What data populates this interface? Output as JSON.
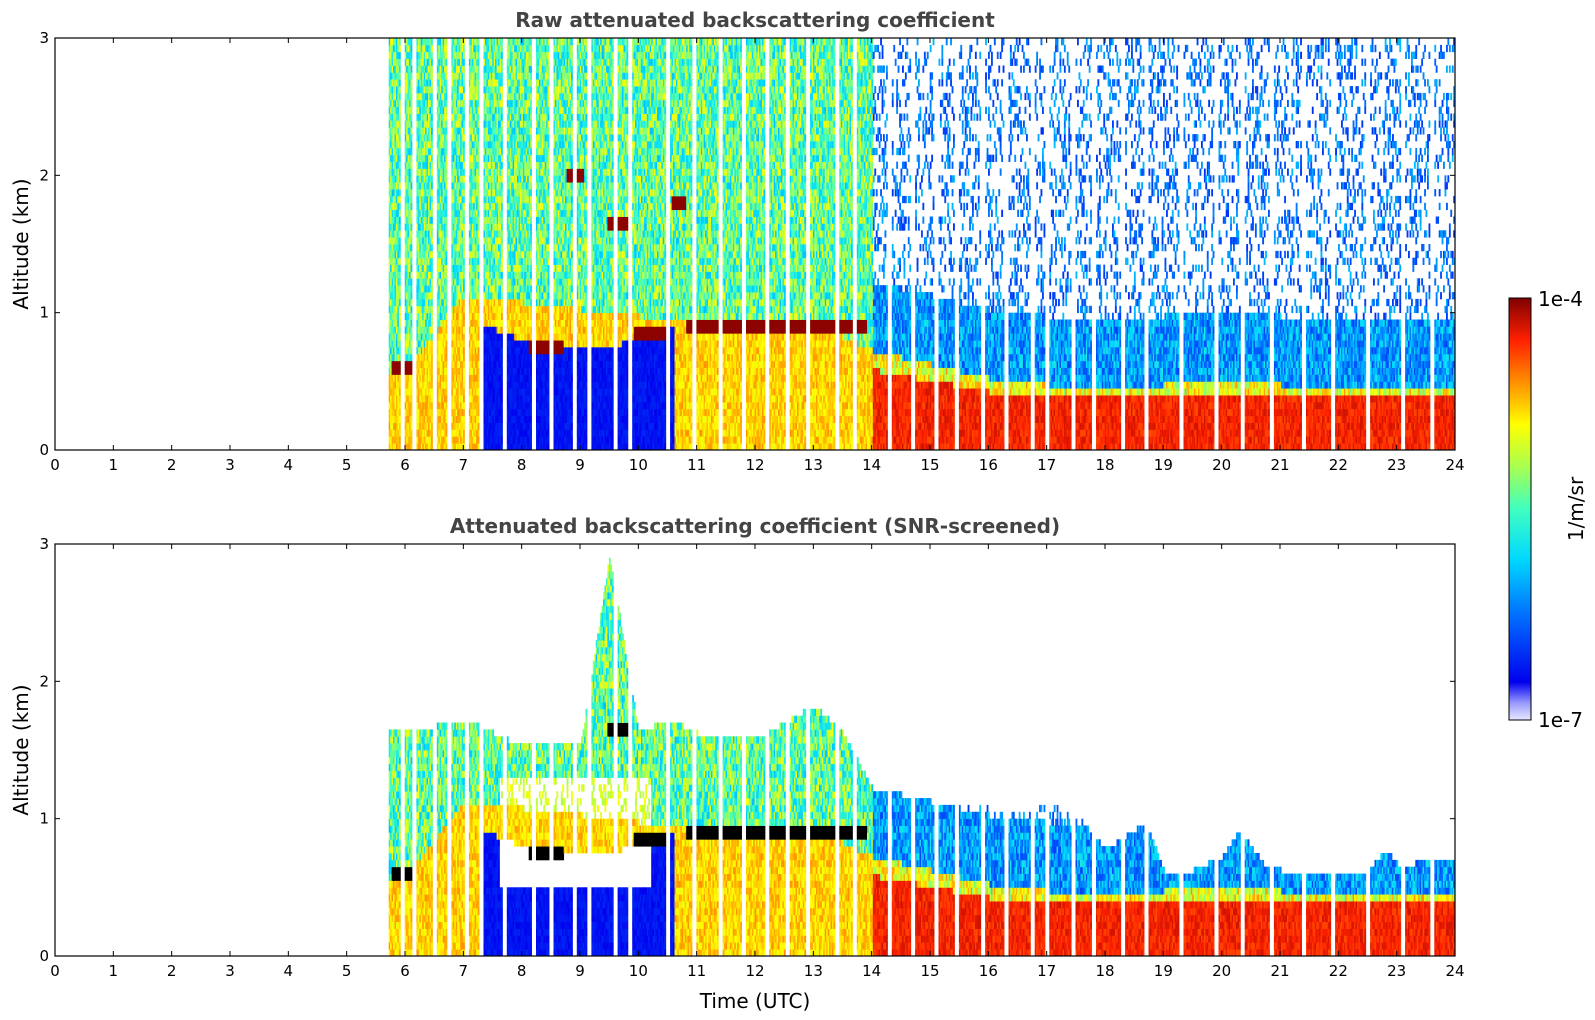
{
  "chart_data": [
    {
      "type": "heatmap",
      "title": "Raw attenuated backscattering coefficient",
      "xlabel": "",
      "ylabel": "Altitude (km)",
      "xlim": [
        0,
        24
      ],
      "ylim": [
        0,
        3
      ],
      "xticks": [
        "0",
        "1",
        "2",
        "3",
        "4",
        "5",
        "6",
        "7",
        "8",
        "9",
        "10",
        "11",
        "12",
        "13",
        "14",
        "15",
        "16",
        "17",
        "18",
        "19",
        "20",
        "21",
        "22",
        "23",
        "24"
      ],
      "yticks": [
        "0",
        "1",
        "2",
        "3"
      ],
      "data_start_time": 5.72,
      "profile_gaps_utc": [
        5.95,
        6.15,
        6.5,
        6.75,
        7.05,
        7.3,
        7.7,
        8.2,
        8.5,
        8.9,
        9.15,
        9.6,
        9.85,
        10.5,
        10.95,
        11.4,
        11.8,
        12.2,
        12.55,
        12.9,
        13.4,
        13.7,
        14.3,
        14.7,
        15.1,
        15.45,
        15.9,
        16.3,
        16.75,
        17.0,
        17.45,
        17.8,
        18.3,
        18.7,
        19.3,
        19.9,
        20.35,
        20.85,
        21.4,
        21.9,
        22.5,
        23.1,
        23.6
      ],
      "boundary_layer_top_km": [
        [
          6.0,
          0.55
        ],
        [
          7.0,
          1.1
        ],
        [
          8.0,
          1.05
        ],
        [
          9.0,
          1.0
        ],
        [
          10.0,
          0.95
        ],
        [
          11.0,
          0.95
        ],
        [
          12.0,
          0.9
        ],
        [
          13.0,
          0.9
        ],
        [
          14.0,
          0.7
        ],
        [
          15.0,
          0.6
        ],
        [
          16.0,
          0.5
        ],
        [
          17.0,
          0.45
        ],
        [
          18.0,
          0.45
        ],
        [
          19.0,
          0.45
        ],
        [
          20.0,
          0.5
        ],
        [
          21.0,
          0.45
        ],
        [
          22.0,
          0.45
        ],
        [
          23.0,
          0.45
        ],
        [
          24.0,
          0.45
        ]
      ],
      "cloud_layers": [
        {
          "t0": 5.75,
          "t1": 6.15,
          "alt_km": 0.6
        },
        {
          "t0": 8.75,
          "t1": 9.05,
          "alt_km": 2.0
        },
        {
          "t0": 9.45,
          "t1": 9.85,
          "alt_km": 1.62
        },
        {
          "t0": 9.9,
          "t1": 10.45,
          "alt_km": 0.85
        },
        {
          "t0": 10.55,
          "t1": 10.8,
          "alt_km": 1.78
        },
        {
          "t0": 10.8,
          "t1": 13.9,
          "alt_km": 0.9
        },
        {
          "t0": 8.1,
          "t1": 8.7,
          "alt_km": 0.75
        }
      ]
    },
    {
      "type": "heatmap",
      "title": "Attenuated backscattering coefficient (SNR-screened)",
      "xlabel": "Time (UTC)",
      "ylabel": "Altitude (km)",
      "xlim": [
        0,
        24
      ],
      "ylim": [
        0,
        3
      ],
      "xticks": [
        "0",
        "1",
        "2",
        "3",
        "4",
        "5",
        "6",
        "7",
        "8",
        "9",
        "10",
        "11",
        "12",
        "13",
        "14",
        "15",
        "16",
        "17",
        "18",
        "19",
        "20",
        "21",
        "22",
        "23",
        "24"
      ],
      "yticks": [
        "0",
        "1",
        "2",
        "3"
      ],
      "data_start_time": 5.72,
      "signal_top_km": [
        [
          5.75,
          1.6
        ],
        [
          6.5,
          1.65
        ],
        [
          7.0,
          1.7
        ],
        [
          7.5,
          1.6
        ],
        [
          8.0,
          1.5
        ],
        [
          9.0,
          1.5
        ],
        [
          9.5,
          2.9
        ],
        [
          10.0,
          1.6
        ],
        [
          10.5,
          1.7
        ],
        [
          11.0,
          1.6
        ],
        [
          12.0,
          1.55
        ],
        [
          13.0,
          1.8
        ],
        [
          13.5,
          1.6
        ],
        [
          14.0,
          1.2
        ],
        [
          15.0,
          1.1
        ],
        [
          16.0,
          1.05
        ],
        [
          16.5,
          1.0
        ],
        [
          17.0,
          1.1
        ],
        [
          17.5,
          1.0
        ],
        [
          18.0,
          0.75
        ],
        [
          18.7,
          0.95
        ],
        [
          19.0,
          0.6
        ],
        [
          19.5,
          0.6
        ],
        [
          20.0,
          0.7
        ],
        [
          20.3,
          0.9
        ],
        [
          20.7,
          0.65
        ],
        [
          21.0,
          0.6
        ],
        [
          21.5,
          0.55
        ],
        [
          22.0,
          0.55
        ],
        [
          22.5,
          0.6
        ],
        [
          22.8,
          0.75
        ],
        [
          23.1,
          0.6
        ],
        [
          23.5,
          0.7
        ],
        [
          23.9,
          0.65
        ]
      ]
    }
  ],
  "colorbar": {
    "label": "1/m/sr",
    "max_label": "1e-4",
    "min_label": "1e-7",
    "scale": "log",
    "colormap": "jet"
  }
}
